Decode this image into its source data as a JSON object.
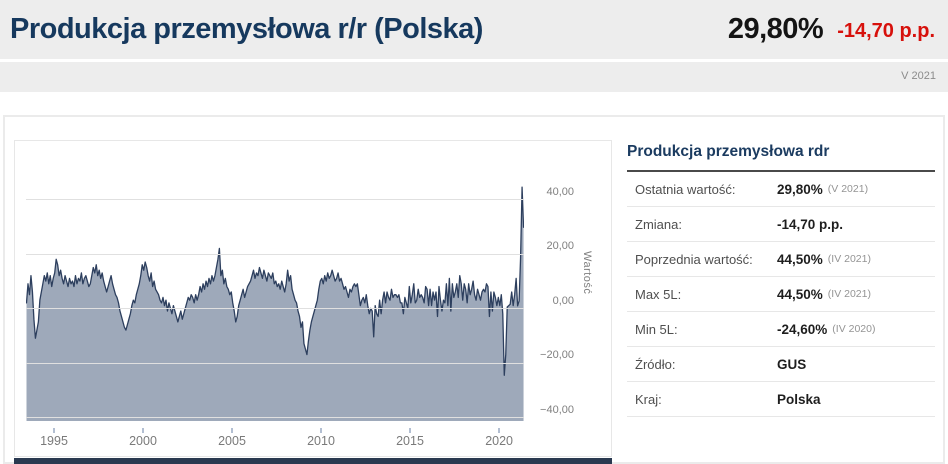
{
  "header": {
    "title": "Produkcja przemysłowa r/r (Polska)",
    "current_value": "29,80%",
    "change": "-14,70 p.p.",
    "period": "V 2021"
  },
  "stats": {
    "title": "Produkcja przemysłowa rdr",
    "rows": [
      {
        "label": "Ostatnia wartość:",
        "value": "29,80%",
        "note": "(V 2021)"
      },
      {
        "label": "Zmiana:",
        "value": "-14,70 p.p.",
        "note": ""
      },
      {
        "label": "Poprzednia wartość:",
        "value": "44,50%",
        "note": "(IV 2021)"
      },
      {
        "label": "Max 5L:",
        "value": "44,50%",
        "note": "(IV 2021)"
      },
      {
        "label": "Min 5L:",
        "value": "-24,60%",
        "note": "(IV 2020)"
      },
      {
        "label": "Źródło:",
        "value": "GUS",
        "note": ""
      },
      {
        "label": "Kraj:",
        "value": "Polska",
        "note": ""
      }
    ]
  },
  "chart_data": {
    "type": "area",
    "title": "Produkcja przemysłowa r/r (Polska)",
    "ylabel": "Wartość",
    "grid": true,
    "x_ticks": [
      1995,
      2000,
      2005,
      2010,
      2015,
      2020
    ],
    "x_tick_labels": [
      "1995",
      "2000",
      "2005",
      "2010",
      "2015",
      "2020"
    ],
    "y_ticks": [
      40,
      20,
      0,
      -20,
      -40
    ],
    "y_tick_labels": [
      "40,00",
      "20,00",
      "0,00",
      "−20,00",
      "−40,00"
    ],
    "xlim": [
      1993.43,
      2021.4
    ],
    "ylim": [
      -41.4,
      57.8
    ],
    "series": [
      {
        "name": "Produkcja przemysłowa rdr (%)",
        "frequency": "monthly",
        "start_year": 1993,
        "start_month": 6,
        "values": [
          2,
          9,
          5,
          12,
          6,
          -4,
          -11,
          -8,
          -5,
          3,
          6,
          9,
          12,
          10,
          13,
          9,
          12,
          8,
          11,
          13,
          18,
          16,
          12,
          14,
          11,
          9,
          12,
          10,
          8,
          11,
          9,
          10,
          8,
          12,
          9,
          11,
          10,
          13,
          9,
          11,
          12,
          10,
          8,
          9,
          12,
          15,
          13,
          16,
          12,
          14,
          11,
          13,
          10,
          8,
          6,
          8,
          10,
          12,
          9,
          7,
          5,
          4,
          2,
          -1,
          -3,
          -5,
          -7,
          -8,
          -6,
          -4,
          -2,
          1,
          3,
          2,
          5,
          7,
          9,
          12,
          16,
          14,
          17,
          15,
          12,
          10,
          13,
          8,
          10,
          7,
          6,
          5,
          3,
          2,
          4,
          1,
          3,
          -1,
          2,
          0,
          -2,
          1,
          -1,
          -3,
          -5,
          -3,
          -1,
          -4,
          -2,
          0,
          2,
          4,
          3,
          5,
          4,
          2,
          5,
          3,
          5,
          8,
          6,
          9,
          7,
          10,
          8,
          11,
          9,
          12,
          10,
          12,
          15,
          18,
          22,
          12,
          14,
          9,
          11,
          8,
          7,
          5,
          6,
          2,
          -1,
          -5,
          -3,
          1,
          3,
          5,
          7,
          4,
          6,
          8,
          9,
          10,
          12,
          14,
          11,
          13,
          12,
          15,
          13,
          11,
          14,
          12,
          10,
          13,
          12,
          11,
          13,
          9,
          10,
          8,
          9,
          7,
          10,
          8,
          6,
          9,
          14,
          10,
          12,
          7,
          5,
          3,
          2,
          -1,
          -3,
          -7,
          -5,
          -13,
          -15,
          -17,
          -12,
          -8,
          -5,
          -3,
          -1,
          1,
          3,
          7,
          10,
          11,
          9,
          12,
          10,
          13,
          11,
          12,
          14,
          12,
          10,
          11,
          13,
          10,
          11,
          9,
          7,
          8,
          6,
          4,
          7,
          6,
          8,
          9,
          8,
          9,
          5,
          1,
          3,
          4,
          2,
          5,
          1,
          -2,
          0,
          -1,
          -10.5,
          1,
          -2,
          -3,
          3,
          -2,
          3,
          6,
          2,
          6,
          4,
          3,
          7,
          4,
          5,
          5,
          4,
          5,
          2,
          2,
          -2,
          4,
          2,
          0,
          8,
          2,
          5,
          9,
          2,
          3,
          7,
          4,
          5,
          4,
          2,
          8,
          7,
          1,
          7,
          1,
          6,
          3,
          6,
          -3,
          8,
          3,
          -1,
          3,
          2,
          9,
          1,
          11,
          -1,
          9,
          4,
          6,
          9,
          4,
          12,
          9,
          3,
          9,
          7,
          2,
          9,
          5,
          7,
          10,
          5,
          3,
          7,
          5,
          3,
          6,
          7,
          6,
          9,
          8,
          -3,
          6,
          -1,
          6,
          4,
          1,
          4,
          1,
          5,
          -2,
          -24.6,
          -17,
          0.5,
          1,
          1.5,
          6,
          1,
          5,
          11,
          0.9,
          2.7,
          18.6,
          44.5,
          29.8
        ]
      }
    ],
    "colors": {
      "line": "#2d3f5e",
      "fill": "#9ea9ba",
      "grid": "#e0e0e0",
      "axis_text": "#7f7f7f",
      "tick": "#b3bfd2"
    }
  },
  "colors": {
    "accent_navy": "#16395e",
    "negative_red": "#d7110c",
    "band_bg": "#ededed",
    "bottom_bar": "#2a3950"
  }
}
